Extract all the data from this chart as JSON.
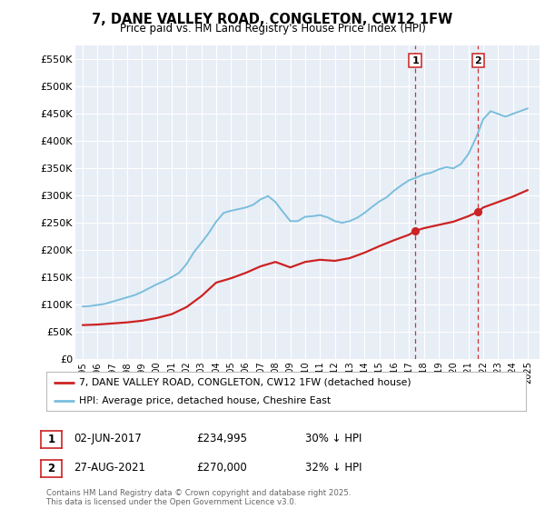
{
  "title": "7, DANE VALLEY ROAD, CONGLETON, CW12 1FW",
  "subtitle": "Price paid vs. HM Land Registry's House Price Index (HPI)",
  "hpi_label": "HPI: Average price, detached house, Cheshire East",
  "house_label": "7, DANE VALLEY ROAD, CONGLETON, CW12 1FW (detached house)",
  "annotation1": {
    "num": "1",
    "date": "02-JUN-2017",
    "price": "£234,995",
    "note": "30% ↓ HPI"
  },
  "annotation2": {
    "num": "2",
    "date": "27-AUG-2021",
    "price": "£270,000",
    "note": "32% ↓ HPI"
  },
  "vline1_x": 2017.42,
  "vline2_x": 2021.65,
  "sale1_y": 234995,
  "sale2_y": 270000,
  "ylim": [
    0,
    575000
  ],
  "yticks": [
    0,
    50000,
    100000,
    150000,
    200000,
    250000,
    300000,
    350000,
    400000,
    450000,
    500000,
    550000
  ],
  "ytick_labels": [
    "£0",
    "£50K",
    "£100K",
    "£150K",
    "£200K",
    "£250K",
    "£300K",
    "£350K",
    "£400K",
    "£450K",
    "£500K",
    "£550K"
  ],
  "xlim": [
    1994.5,
    2025.8
  ],
  "xticks": [
    1995,
    1996,
    1997,
    1998,
    1999,
    2000,
    2001,
    2002,
    2003,
    2004,
    2005,
    2006,
    2007,
    2008,
    2009,
    2010,
    2011,
    2012,
    2013,
    2014,
    2015,
    2016,
    2017,
    2018,
    2019,
    2020,
    2021,
    2022,
    2023,
    2024,
    2025
  ],
  "hpi_color": "#7abedd",
  "house_color": "#cc2222",
  "vline_color": "#cc3333",
  "background_color": "#e8eef6",
  "grid_color": "#ffffff",
  "footnote": "Contains HM Land Registry data © Crown copyright and database right 2025.\nThis data is licensed under the Open Government Licence v3.0.",
  "hpi_years": [
    1995,
    1995.5,
    1996,
    1996.5,
    1997,
    1997.5,
    1998,
    1998.5,
    1999,
    1999.5,
    2000,
    2000.5,
    2001,
    2001.5,
    2002,
    2002.5,
    2003,
    2003.5,
    2004,
    2004.5,
    2005,
    2005.5,
    2006,
    2006.5,
    2007,
    2007.5,
    2008,
    2008.5,
    2009,
    2009.5,
    2010,
    2010.5,
    2011,
    2011.5,
    2012,
    2012.5,
    2013,
    2013.5,
    2014,
    2014.5,
    2015,
    2015.5,
    2016,
    2016.5,
    2017,
    2017.5,
    2018,
    2018.5,
    2019,
    2019.5,
    2020,
    2020.5,
    2021,
    2021.5,
    2022,
    2022.5,
    2023,
    2023.5,
    2024,
    2024.5,
    2025
  ],
  "hpi_vals": [
    96000,
    97000,
    99000,
    101000,
    105000,
    109000,
    113000,
    117000,
    123000,
    130000,
    137000,
    143000,
    150000,
    158000,
    174000,
    196000,
    213000,
    231000,
    252000,
    268000,
    272000,
    275000,
    278000,
    283000,
    293000,
    299000,
    288000,
    270000,
    253000,
    253000,
    261000,
    262000,
    264000,
    260000,
    253000,
    250000,
    253000,
    259000,
    268000,
    279000,
    289000,
    297000,
    309000,
    319000,
    328000,
    333000,
    339000,
    342000,
    348000,
    352000,
    350000,
    358000,
    376000,
    405000,
    440000,
    455000,
    450000,
    445000,
    450000,
    455000,
    460000
  ],
  "house_years": [
    1995,
    1996,
    1997,
    1998,
    1999,
    2000,
    2001,
    2002,
    2003,
    2004,
    2005,
    2006,
    2007,
    2008,
    2009,
    2010,
    2011,
    2012,
    2013,
    2014,
    2015,
    2016,
    2017,
    2017.42,
    2018,
    2019,
    2020,
    2021,
    2021.65,
    2022,
    2023,
    2024,
    2025
  ],
  "house_vals": [
    62000,
    63000,
    65000,
    67000,
    70000,
    75000,
    82000,
    95000,
    115000,
    140000,
    148000,
    158000,
    170000,
    178000,
    168000,
    178000,
    182000,
    180000,
    185000,
    195000,
    207000,
    218000,
    228000,
    234995,
    240000,
    246000,
    252000,
    262000,
    270000,
    278000,
    288000,
    298000,
    310000
  ]
}
